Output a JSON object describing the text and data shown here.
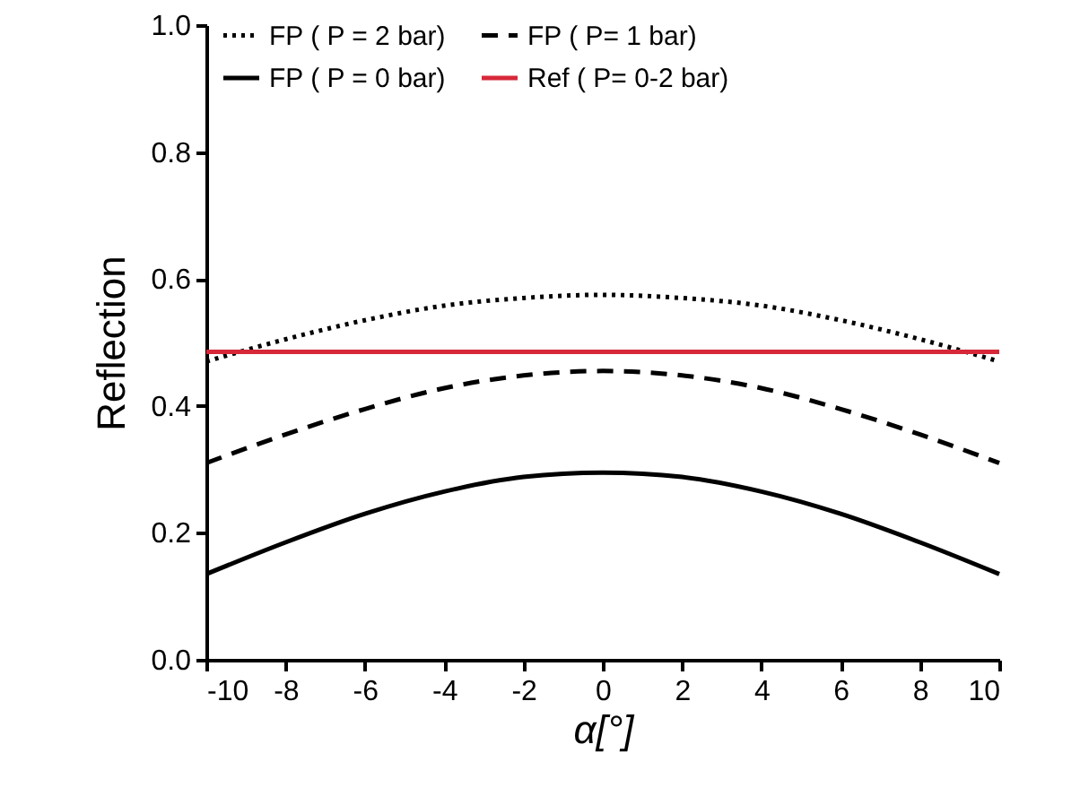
{
  "chart_data": {
    "type": "line",
    "xlabel": "α[°]",
    "ylabel": "Reflection",
    "xlim": [
      -10,
      10
    ],
    "xticks": [
      -10,
      -8,
      -6,
      -4,
      -2,
      0,
      2,
      4,
      6,
      8,
      10
    ],
    "ylim": [
      0,
      1
    ],
    "yticks": [
      {
        "value": 0,
        "label": "0.0"
      },
      {
        "value": 0.2,
        "label": "0.2"
      },
      {
        "value": 0.4,
        "label": "0.4"
      },
      {
        "value": 0.6,
        "label": "0.6"
      },
      {
        "value": 0.8,
        "label": "0.8"
      },
      {
        "value": 1,
        "label": "1.0"
      }
    ],
    "grid": false,
    "legend": "top",
    "marker": "none",
    "series": [
      {
        "name": "FP ( P = 2 bar)",
        "color": "#000000",
        "line_style": "dotted",
        "x": [
          -10,
          -8,
          -6,
          -4,
          -2,
          0,
          2,
          4,
          6,
          8,
          10
        ],
        "values": [
          0.47,
          0.505,
          0.535,
          0.558,
          0.57,
          0.575,
          0.57,
          0.558,
          0.535,
          0.505,
          0.47
        ]
      },
      {
        "name": "FP ( P= 1 bar)",
        "color": "#000000",
        "line_style": "dashed",
        "x": [
          -10,
          -8,
          -6,
          -4,
          -2,
          0,
          2,
          4,
          6,
          8,
          10
        ],
        "values": [
          0.31,
          0.355,
          0.395,
          0.428,
          0.448,
          0.455,
          0.448,
          0.428,
          0.395,
          0.355,
          0.31
        ]
      },
      {
        "name": "FP ( P = 0 bar)",
        "color": "#000000",
        "line_style": "solid",
        "x": [
          -10,
          -8,
          -6,
          -4,
          -2,
          0,
          2,
          4,
          6,
          8,
          10
        ],
        "values": [
          0.135,
          0.185,
          0.23,
          0.265,
          0.288,
          0.295,
          0.288,
          0.265,
          0.23,
          0.185,
          0.135
        ]
      },
      {
        "name": "Ref ( P= 0-2 bar)",
        "color": "#d62839",
        "line_style": "solid",
        "x": [
          -10,
          10
        ],
        "values": [
          0.485,
          0.485
        ]
      }
    ]
  }
}
